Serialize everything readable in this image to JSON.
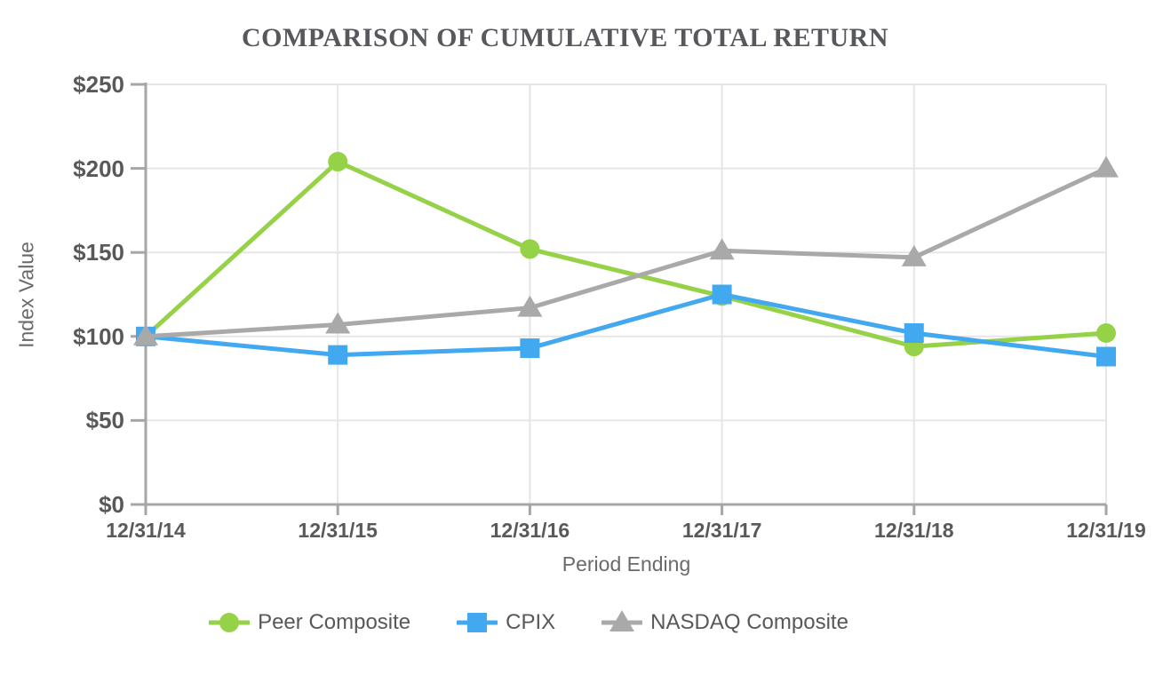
{
  "title": "COMPARISON OF CUMULATIVE TOTAL RETURN",
  "chart_data": {
    "type": "line",
    "title": "COMPARISON OF CUMULATIVE TOTAL RETURN",
    "xlabel": "Period Ending",
    "ylabel": "Index Value",
    "categories": [
      "12/31/14",
      "12/31/15",
      "12/31/16",
      "12/31/17",
      "12/31/18",
      "12/31/19"
    ],
    "y_tick_labels": [
      "$0",
      "$50",
      "$100",
      "$150",
      "$200",
      "$250"
    ],
    "ylim": [
      0,
      250
    ],
    "y_tick_step": 50,
    "grid": true,
    "legend_position": "bottom",
    "series": [
      {
        "name": "Peer Composite",
        "marker": "circle",
        "color": "#96d247",
        "values": [
          100,
          204,
          152,
          124,
          94,
          102
        ]
      },
      {
        "name": "CPIX",
        "marker": "square",
        "color": "#42a9f0",
        "values": [
          100,
          89,
          93,
          125,
          102,
          88
        ]
      },
      {
        "name": "NASDAQ Composite",
        "marker": "triangle",
        "color": "#a9a9a9",
        "values": [
          100,
          107,
          117,
          151,
          147,
          200
        ]
      }
    ],
    "colors": {
      "gridline": "#e6e6e6",
      "axis": "#a6a6a6",
      "tick_text": "#595959",
      "title_text": "#57585c"
    }
  }
}
